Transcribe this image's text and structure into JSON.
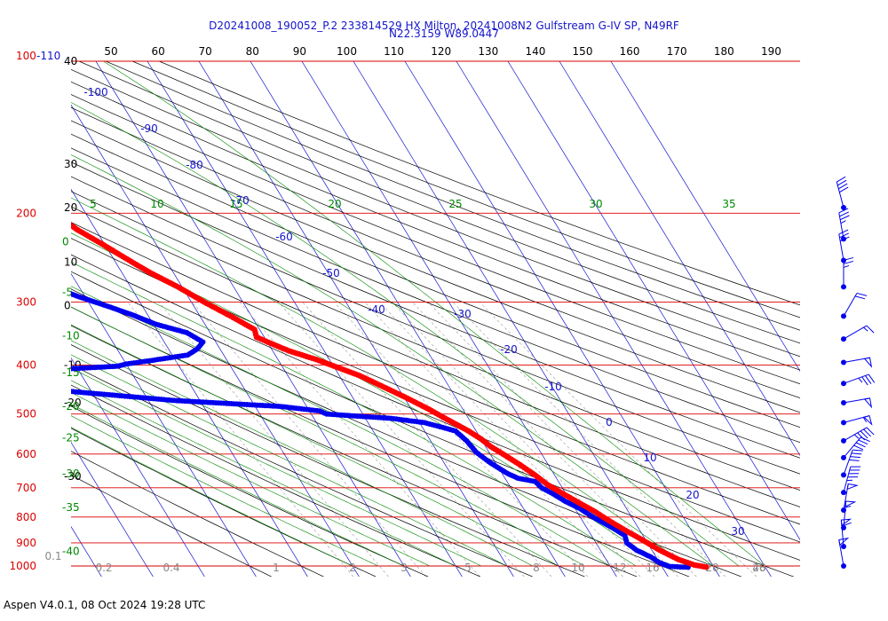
{
  "title_line1": "D20241008_190052_P.2 233814529 HX Milton, 20241008N2 Gulfstream G-IV SP, N49RF",
  "title_line2": "N22.3159 W89.0447",
  "footer": "Aspen V4.0.1, 08 Oct 2024  19:28 UTC",
  "colors": {
    "temperature": "#ff0000",
    "dewpoint": "#0000ee",
    "isobar": "#dd0000",
    "isotherm": "#1515cc",
    "dry_adiabat": "#000000",
    "moist_adiabat": "#008800",
    "mixing_ratio": "#999999"
  },
  "chart_data": {
    "type": "scatter",
    "chart_kind": "skew-T log-P sounding",
    "pressure_axis": {
      "scale": "log",
      "range": [
        100,
        1000
      ],
      "tick_labels": [
        {
          "p": 100,
          "label": "100-110"
        },
        {
          "p": 200,
          "label": "200"
        },
        {
          "p": 300,
          "label": "300"
        },
        {
          "p": 400,
          "label": "400"
        },
        {
          "p": 500,
          "label": "500"
        },
        {
          "p": 600,
          "label": "600"
        },
        {
          "p": 700,
          "label": "700"
        },
        {
          "p": 800,
          "label": "800"
        },
        {
          "p": 900,
          "label": "900"
        },
        {
          "p": 1000,
          "label": "1000"
        }
      ]
    },
    "top_scale_labels": [
      "50",
      "60",
      "70",
      "80",
      "90",
      "100",
      "110",
      "120",
      "130",
      "140",
      "150",
      "160",
      "170",
      "180",
      "190"
    ],
    "left_scale_labels": [
      {
        "p": 100,
        "label": "40"
      },
      {
        "p": 160,
        "label": "30"
      },
      {
        "p": 195,
        "label": "20"
      },
      {
        "p": 250,
        "label": "10"
      },
      {
        "p": 305,
        "label": "0"
      },
      {
        "p": 400,
        "label": "-10"
      },
      {
        "p": 475,
        "label": "-20"
      },
      {
        "p": 665,
        "label": "-30"
      }
    ],
    "moist_left_labels": [
      {
        "p": 228,
        "label": "0"
      },
      {
        "p": 287,
        "label": "-5"
      },
      {
        "p": 350,
        "label": "-10"
      },
      {
        "p": 414,
        "label": "-15"
      },
      {
        "p": 483,
        "label": "-20"
      },
      {
        "p": 557,
        "label": "-25"
      },
      {
        "p": 657,
        "label": "-30"
      },
      {
        "p": 766,
        "label": "-35"
      },
      {
        "p": 935,
        "label": "-40"
      }
    ],
    "moist_adiabat_labels": [
      "5",
      "10",
      "15",
      "20",
      "25",
      "30",
      "35"
    ],
    "isotherm_labels": [
      "-100",
      "-90",
      "-80",
      "-70",
      "-60",
      "-50",
      "-40",
      "-30",
      "-20",
      "-10",
      "0",
      "10",
      "20",
      "30"
    ],
    "mixing_ratio_labels": [
      "0.1",
      "0.2",
      "0.4",
      "1",
      "2",
      "3",
      "5",
      "8",
      "10",
      "12",
      "16",
      "20",
      "28",
      "40"
    ],
    "temperature": [
      {
        "p": 184,
        "t": -59.5
      },
      {
        "p": 193,
        "t": -57.5
      },
      {
        "p": 203,
        "t": -55.8
      },
      {
        "p": 216,
        "t": -53.5
      },
      {
        "p": 230,
        "t": -50.5
      },
      {
        "p": 245,
        "t": -47.7
      },
      {
        "p": 262,
        "t": -44.6
      },
      {
        "p": 280,
        "t": -40.8
      },
      {
        "p": 300,
        "t": -37.5
      },
      {
        "p": 320,
        "t": -34.0
      },
      {
        "p": 340,
        "t": -31.0
      },
      {
        "p": 352,
        "t": -31.5
      },
      {
        "p": 362,
        "t": -29.5
      },
      {
        "p": 375,
        "t": -26.8
      },
      {
        "p": 390,
        "t": -22.5
      },
      {
        "p": 405,
        "t": -19.2
      },
      {
        "p": 420,
        "t": -16.0
      },
      {
        "p": 440,
        "t": -13.0
      },
      {
        "p": 465,
        "t": -9.5
      },
      {
        "p": 490,
        "t": -6.5
      },
      {
        "p": 515,
        "t": -4.0
      },
      {
        "p": 540,
        "t": -1.5
      },
      {
        "p": 560,
        "t": 0.0
      },
      {
        "p": 580,
        "t": 1.0
      },
      {
        "p": 600,
        "t": 2.5
      },
      {
        "p": 630,
        "t": 4.5
      },
      {
        "p": 660,
        "t": 6.2
      },
      {
        "p": 690,
        "t": 7.5
      },
      {
        "p": 720,
        "t": 9.5
      },
      {
        "p": 750,
        "t": 11.5
      },
      {
        "p": 780,
        "t": 13.5
      },
      {
        "p": 810,
        "t": 15.0
      },
      {
        "p": 850,
        "t": 17.2
      },
      {
        "p": 890,
        "t": 19.5
      },
      {
        "p": 930,
        "t": 21.5
      },
      {
        "p": 970,
        "t": 24.0
      },
      {
        "p": 995,
        "t": 26.5
      },
      {
        "p": 1005,
        "t": 28.5
      }
    ],
    "dewpoint": [
      {
        "p": 245,
        "t": -82.0
      },
      {
        "p": 250,
        "t": -79.5
      },
      {
        "p": 256,
        "t": -76.5
      },
      {
        "p": 262,
        "t": -73.0
      },
      {
        "p": 268,
        "t": -70.0
      },
      {
        "p": 275,
        "t": -67.0
      },
      {
        "p": 282,
        "t": -64.5
      },
      {
        "p": 292,
        "t": -61.5
      },
      {
        "p": 305,
        "t": -57.0
      },
      {
        "p": 318,
        "t": -53.0
      },
      {
        "p": 332,
        "t": -49.5
      },
      {
        "p": 345,
        "t": -44.5
      },
      {
        "p": 360,
        "t": -42.5
      },
      {
        "p": 372,
        "t": -44.5
      },
      {
        "p": 382,
        "t": -47.0
      },
      {
        "p": 392,
        "t": -55.0
      },
      {
        "p": 398,
        "t": -60.0
      },
      {
        "p": 402,
        "t": -62.0
      },
      {
        "p": 405,
        "t": -68.0
      },
      {
        "p": 410,
        "t": -79.0
      },
      {
        "p": 424,
        "t": -105.0
      },
      {
        "p": 430,
        "t": -110.0
      },
      {
        "p": 436,
        "t": -95.0
      },
      {
        "p": 450,
        "t": -75.0
      },
      {
        "p": 470,
        "t": -55.0
      },
      {
        "p": 483,
        "t": -35.0
      },
      {
        "p": 493,
        "t": -28.0
      },
      {
        "p": 500,
        "t": -27.0
      },
      {
        "p": 510,
        "t": -15.0
      },
      {
        "p": 520,
        "t": -9.0
      },
      {
        "p": 540,
        "t": -4.0
      },
      {
        "p": 565,
        "t": -3.0
      },
      {
        "p": 595,
        "t": -2.5
      },
      {
        "p": 625,
        "t": -1.0
      },
      {
        "p": 655,
        "t": 1.0
      },
      {
        "p": 670,
        "t": 2.5
      },
      {
        "p": 680,
        "t": 5.5
      },
      {
        "p": 700,
        "t": 6.0
      },
      {
        "p": 720,
        "t": 7.5
      },
      {
        "p": 745,
        "t": 9.0
      },
      {
        "p": 770,
        "t": 11.0
      },
      {
        "p": 800,
        "t": 12.5
      },
      {
        "p": 840,
        "t": 15.0
      },
      {
        "p": 870,
        "t": 16.5
      },
      {
        "p": 900,
        "t": 16.0
      },
      {
        "p": 930,
        "t": 17.0
      },
      {
        "p": 960,
        "t": 19.0
      },
      {
        "p": 985,
        "t": 20.0
      },
      {
        "p": 1002,
        "t": 21.5
      },
      {
        "p": 1006,
        "t": 25.0
      }
    ],
    "wind_barbs": [
      {
        "p": 195,
        "dir": 345,
        "speed": 40
      },
      {
        "p": 225,
        "dir": 350,
        "speed": 35
      },
      {
        "p": 248,
        "dir": 350,
        "speed": 30
      },
      {
        "p": 280,
        "dir": 0,
        "speed": 25
      },
      {
        "p": 320,
        "dir": 30,
        "speed": 20
      },
      {
        "p": 355,
        "dir": 60,
        "speed": 15
      },
      {
        "p": 395,
        "dir": 80,
        "speed": 50
      },
      {
        "p": 435,
        "dir": 70,
        "speed": 35
      },
      {
        "p": 475,
        "dir": 80,
        "speed": 50
      },
      {
        "p": 520,
        "dir": 75,
        "speed": 55
      },
      {
        "p": 565,
        "dir": 60,
        "speed": 45
      },
      {
        "p": 610,
        "dir": 40,
        "speed": 40
      },
      {
        "p": 660,
        "dir": 20,
        "speed": 40
      },
      {
        "p": 715,
        "dir": 15,
        "speed": 45
      },
      {
        "p": 775,
        "dir": 10,
        "speed": 50
      },
      {
        "p": 840,
        "dir": 5,
        "speed": 55
      },
      {
        "p": 915,
        "dir": 355,
        "speed": 60
      },
      {
        "p": 1000,
        "dir": 350,
        "speed": 50
      }
    ]
  }
}
